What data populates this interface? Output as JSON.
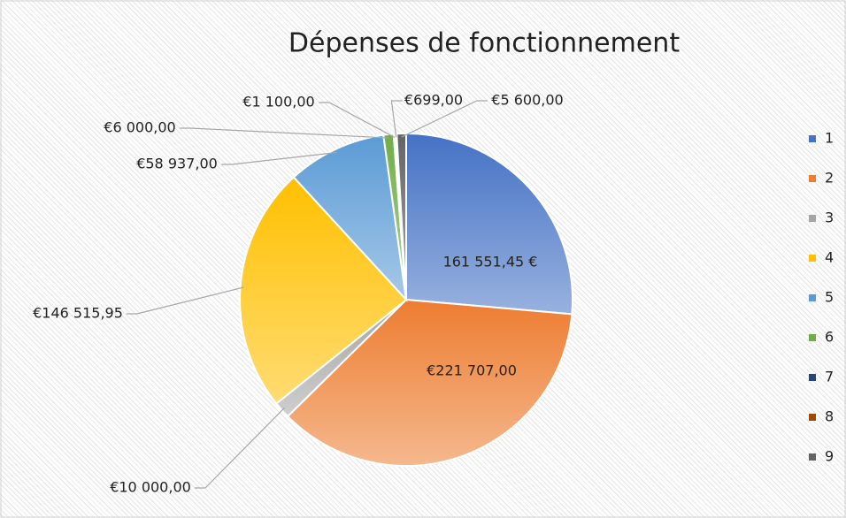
{
  "chart_data": {
    "type": "pie",
    "title": "Dépenses de fonctionnement",
    "categories": [
      "1",
      "2",
      "3",
      "4",
      "5",
      "6",
      "7",
      "8",
      "9"
    ],
    "values": [
      161551.45,
      221707,
      10000,
      146515.95,
      58937,
      6000,
      1100,
      699,
      5600
    ],
    "value_labels": [
      "161 551,45 €",
      "€221 707,00",
      "€10 000,00",
      "€146 515,95",
      "€58 937,00",
      "€6 000,00",
      "€1 100,00",
      "€699,00",
      "€5 600,00"
    ],
    "colors": [
      "#4472c4",
      "#ed7d31",
      "#a5a5a5",
      "#ffc000",
      "#5b9bd5",
      "#70ad47",
      "#264478",
      "#9e480e",
      "#636363"
    ],
    "legend": "right"
  }
}
